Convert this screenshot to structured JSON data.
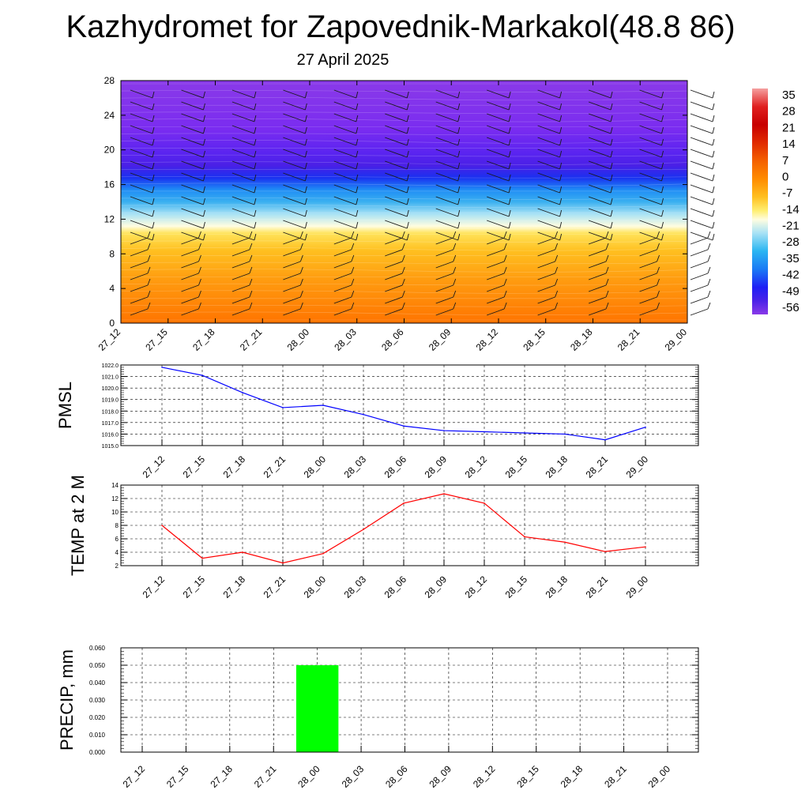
{
  "header": {
    "title": "Kazhydromet for Zapovednik-Markakol(48.8 86)",
    "subtitle": "27 April 2025"
  },
  "colors": {
    "pmsl_line": "#0000ff",
    "temp_line": "#ff0000",
    "precip_bar": "#00ff00",
    "colorbar": [
      "#8a2be2",
      "#7b2ff0",
      "#4b22e8",
      "#1f1ff5",
      "#1e5cf0",
      "#1a90ff",
      "#2ab5f2",
      "#7fd4f7",
      "#fffde0",
      "#ffe766",
      "#ffc21a",
      "#ff9a10",
      "#ff7a00",
      "#f45000",
      "#e01a00",
      "#c80000",
      "#e03a3a",
      "#f08a8a"
    ]
  },
  "chart_data": [
    {
      "type": "heatmap",
      "title": "",
      "xlabel": "",
      "ylabel": "",
      "x": [
        "27_12",
        "27_15",
        "27_18",
        "27_21",
        "28_00",
        "28_03",
        "28_06",
        "28_09",
        "28_12",
        "28_15",
        "28_18",
        "28_21",
        "29_00"
      ],
      "y_ticks": [
        0,
        4,
        8,
        12,
        16,
        20,
        24,
        28
      ],
      "ylim": [
        0,
        28
      ],
      "colorbar_labels": [
        "35",
        "28",
        "21",
        "14",
        "7",
        "0",
        "-7",
        "-14",
        "-21",
        "-28",
        "-35",
        "-42",
        "-49",
        "-56"
      ],
      "wind_barbs": true
    },
    {
      "type": "line",
      "ylabel": "PMSL",
      "x": [
        "27_12",
        "27_15",
        "27_18",
        "27_21",
        "28_00",
        "28_03",
        "28_06",
        "28_09",
        "28_12",
        "28_15",
        "28_18",
        "28_21",
        "29_00"
      ],
      "values": [
        1021.8,
        1021.1,
        1019.6,
        1018.3,
        1018.5,
        1017.7,
        1016.7,
        1016.3,
        1016.2,
        1016.1,
        1016.0,
        1015.5,
        1016.6
      ],
      "ylim": [
        1015.0,
        1022.0
      ],
      "y_ticks": [
        "1015.0",
        "1016.0",
        "1017.0",
        "1018.0",
        "1019.0",
        "1020.0",
        "1021.0",
        "1022.0"
      ],
      "grid": true
    },
    {
      "type": "line",
      "ylabel": "TEMP at 2 M",
      "x": [
        "27_12",
        "27_15",
        "27_18",
        "27_21",
        "28_00",
        "28_03",
        "28_06",
        "28_09",
        "28_12",
        "28_15",
        "28_18",
        "28_21",
        "29_00"
      ],
      "values": [
        8.0,
        3.1,
        4.0,
        2.4,
        3.8,
        7.4,
        11.3,
        12.7,
        11.3,
        6.3,
        5.5,
        4.1,
        4.8
      ],
      "ylim": [
        2,
        14
      ],
      "y_ticks": [
        "2",
        "4",
        "6",
        "8",
        "10",
        "12",
        "14"
      ],
      "grid": true
    },
    {
      "type": "bar",
      "ylabel": "PRECIP, mm",
      "categories": [
        "27_12",
        "27_15",
        "27_18",
        "27_21",
        "28_00",
        "28_03",
        "28_06",
        "28_09",
        "28_12",
        "28_15",
        "28_18",
        "28_21",
        "29_00"
      ],
      "values": [
        0,
        0,
        0,
        0,
        0.05,
        0,
        0,
        0,
        0,
        0,
        0,
        0,
        0
      ],
      "ylim": [
        0,
        0.06
      ],
      "y_ticks": [
        "0.000",
        "0.010",
        "0.020",
        "0.030",
        "0.040",
        "0.050",
        "0.060"
      ],
      "grid": true
    }
  ]
}
